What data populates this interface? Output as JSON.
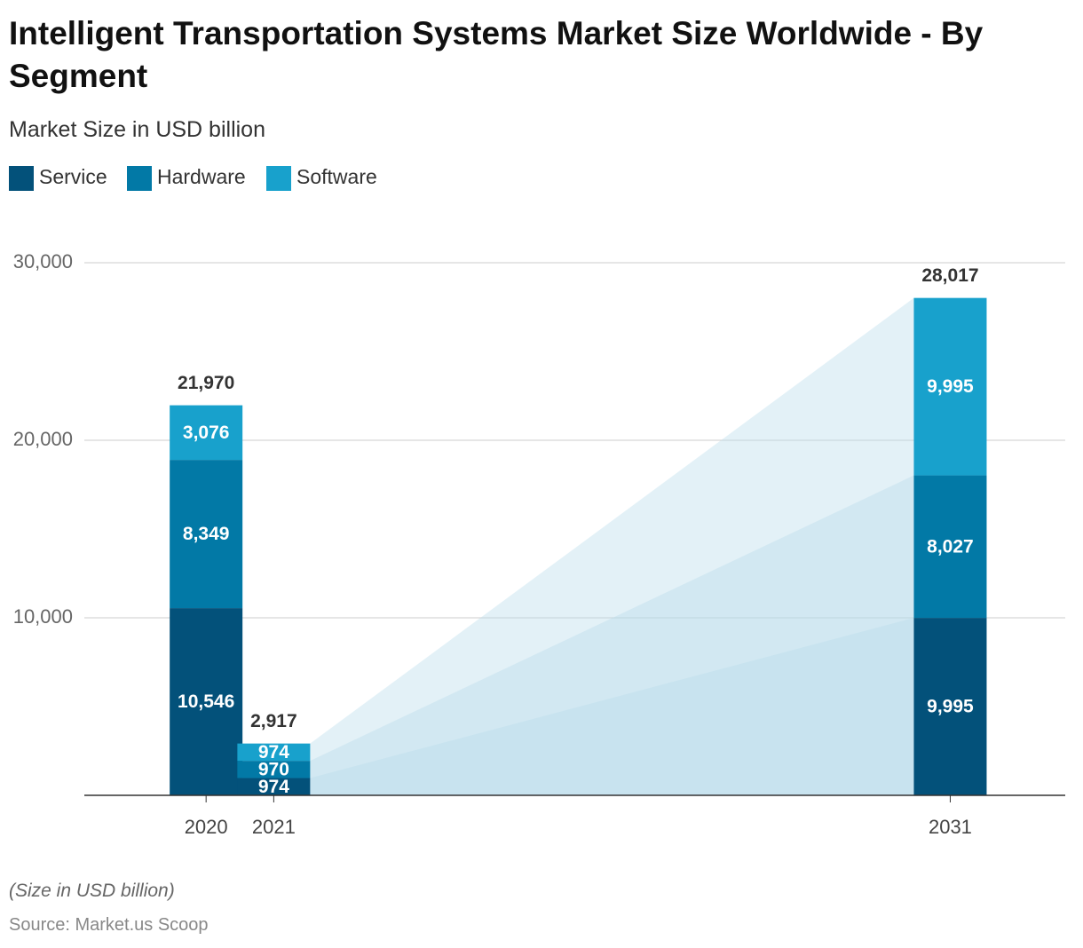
{
  "chart_data": {
    "type": "stacked-bar",
    "title": "Intelligent Transportation Systems Market Size Worldwide - By Segment",
    "subtitle": "Market Size in USD billion",
    "note": "(Size in USD billion)",
    "source": "Source: Market.us Scoop",
    "x": [
      2020,
      2021,
      2031
    ],
    "series": [
      {
        "name": "Service",
        "color": "#03517a",
        "values": [
          10546,
          974,
          9995
        ],
        "value_labels": [
          "10,546",
          "974",
          "9,995"
        ]
      },
      {
        "name": "Hardware",
        "color": "#0279a6",
        "values": [
          8349,
          970,
          8027
        ],
        "value_labels": [
          "8,349",
          "970",
          "8,027"
        ]
      },
      {
        "name": "Software",
        "color": "#18a1cc",
        "values": [
          3076,
          974,
          9995
        ],
        "value_labels": [
          "3,076",
          "974",
          "9,995"
        ]
      }
    ],
    "totals": [
      21970,
      2917,
      28017
    ],
    "total_labels": [
      "21,970",
      "2,917",
      "28,017"
    ],
    "xlim": [
      2018.2,
      2032.7
    ],
    "xticks": [
      2020,
      2021,
      2031
    ],
    "ylim": [
      0,
      30000
    ],
    "yticks": [
      {
        "value": 10000,
        "label": "10,000"
      },
      {
        "value": 20000,
        "label": "20,000"
      },
      {
        "value": 30000,
        "label": "30,000"
      }
    ],
    "grid": true
  }
}
